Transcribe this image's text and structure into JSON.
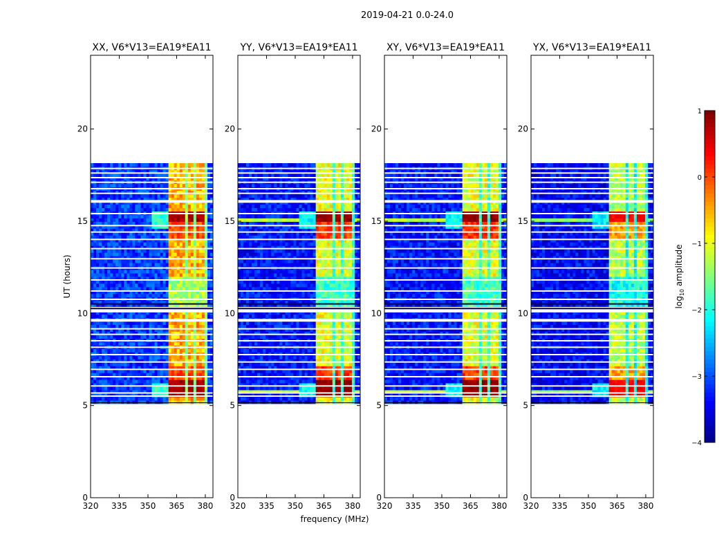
{
  "chart_data": {
    "type": "heatmap",
    "suptitle": "2019-04-21 0.0-24.0",
    "xlabel": "frequency (MHz)",
    "ylabel": "UT (hours)",
    "xlim": [
      320,
      384
    ],
    "ylim": [
      0,
      24
    ],
    "xticks": [
      320,
      335,
      350,
      365,
      380
    ],
    "yticks": [
      0,
      5,
      10,
      15,
      20
    ],
    "colorbar": {
      "label": "log10 amplitude",
      "label_main": "log",
      "label_sub": "10",
      "label_rest": " amplitude",
      "range": [
        -4,
        1
      ],
      "ticks": [
        1,
        0,
        -1,
        -2,
        -3,
        -4
      ],
      "tick_labels": [
        "1",
        "0",
        "−1",
        "−2",
        "−3",
        "−4"
      ],
      "colormap": "jet"
    },
    "data_extent": {
      "t_start": 5.1,
      "t_end": 18.15
    },
    "data_gaps": [
      [
        10.05,
        10.35
      ],
      [
        9.55,
        9.7
      ],
      [
        16.0,
        16.15
      ]
    ],
    "panels": [
      {
        "title": "XX, V6*V13=EA19*EA11",
        "base_level": -3.1,
        "band_level": -0.5,
        "peak_level": 0.8
      },
      {
        "title": "YY, V6*V13=EA19*EA11",
        "base_level": -3.3,
        "band_level": -1.0,
        "peak_level": 0.9
      },
      {
        "title": "XY, V6*V13=EA19*EA11",
        "base_level": -3.3,
        "band_level": -1.0,
        "peak_level": 0.9
      },
      {
        "title": "YX, V6*V13=EA19*EA11",
        "base_level": -3.4,
        "band_level": -1.2,
        "peak_level": 0.4
      }
    ],
    "band_columns_MHz": [
      [
        361,
        364.5
      ],
      [
        365.5,
        369.5
      ],
      [
        370.5,
        374.5
      ],
      [
        375.5,
        379.5
      ]
    ]
  }
}
